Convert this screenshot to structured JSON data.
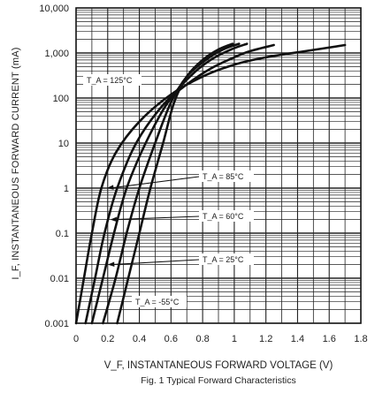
{
  "chart_data": {
    "type": "line",
    "title": "Fig. 1 Typical Forward Characteristics",
    "xlabel": "V_F, INSTANTANEOUS FORWARD VOLTAGE (V)",
    "ylabel": "I_F, INSTANTANEOUS FORWARD CURRENT (mA)",
    "xlim": [
      0,
      1.8
    ],
    "ylim": [
      0.001,
      10000
    ],
    "y_scale": "log",
    "grid": true,
    "x_ticks": [
      "0",
      "0.2",
      "0.4",
      "0.6",
      "0.8",
      "1",
      "1.2",
      "1.4",
      "1.6",
      "1.8"
    ],
    "y_ticks": [
      "0.001",
      "0.01",
      "0.1",
      "1",
      "10",
      "100",
      "1,000",
      "10,000"
    ],
    "series": [
      {
        "name": "T_A = 125°C",
        "x": [
          0.0,
          0.05,
          0.1,
          0.16,
          0.25,
          0.4,
          0.6,
          0.8,
          1.0,
          1.2,
          1.45,
          1.7
        ],
        "y": [
          0.001,
          0.01,
          0.1,
          1,
          6,
          30,
          120,
          300,
          550,
          800,
          1100,
          1500
        ]
      },
      {
        "name": "T_A = 85°C",
        "x": [
          0.06,
          0.12,
          0.18,
          0.26,
          0.38,
          0.55,
          0.7,
          0.85,
          1.0,
          1.1,
          1.25
        ],
        "y": [
          0.001,
          0.01,
          0.1,
          1,
          10,
          70,
          200,
          450,
          800,
          1100,
          1500
        ]
      },
      {
        "name": "T_A = 60°C",
        "x": [
          0.1,
          0.17,
          0.24,
          0.32,
          0.44,
          0.58,
          0.72,
          0.85,
          0.98,
          1.08
        ],
        "y": [
          0.001,
          0.01,
          0.1,
          1,
          10,
          80,
          300,
          700,
          1200,
          1600
        ]
      },
      {
        "name": "T_A = 25°C",
        "x": [
          0.17,
          0.25,
          0.32,
          0.4,
          0.5,
          0.6,
          0.7,
          0.82,
          0.93,
          1.03
        ],
        "y": [
          0.001,
          0.01,
          0.1,
          1,
          10,
          80,
          300,
          700,
          1200,
          1600
        ]
      },
      {
        "name": "T_A = -55°C",
        "x": [
          0.26,
          0.33,
          0.4,
          0.47,
          0.55,
          0.62,
          0.7,
          0.8,
          0.9,
          0.99
        ],
        "y": [
          0.001,
          0.01,
          0.1,
          1,
          10,
          80,
          300,
          700,
          1200,
          1600
        ]
      }
    ],
    "annotations": [
      {
        "text": "T_A = 125°C",
        "series": "T_A = 125°C"
      },
      {
        "text": "T_A = 85°C",
        "series": "T_A = 85°C"
      },
      {
        "text": "T_A = 60°C",
        "series": "T_A = 60°C"
      },
      {
        "text": "T_A = 25°C",
        "series": "T_A = 25°C"
      },
      {
        "text": "T_A = -55°C",
        "series": "T_A = -55°C"
      }
    ]
  }
}
